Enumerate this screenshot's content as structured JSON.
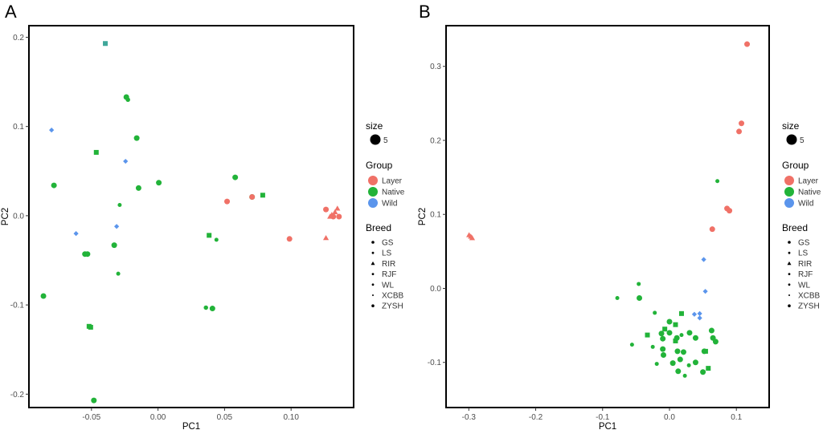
{
  "colors": {
    "Layer": "#F07167",
    "Native": "#22B339",
    "Wild": "#5B95EC",
    "Wild_square": "#3FA79A"
  },
  "legend": {
    "size_title": "size",
    "size_value": "5",
    "group_title": "Group",
    "groups": [
      "Layer",
      "Native",
      "Wild"
    ],
    "breed_title": "Breed",
    "breeds": [
      "GS",
      "LS",
      "RIR",
      "RJF",
      "WL",
      "XCBB",
      "ZYSH"
    ]
  },
  "chart_data": [
    {
      "panel_label": "A",
      "type": "scatter",
      "xlabel": "PC1",
      "ylabel": "PC2",
      "xlim": [
        -0.097,
        0.147
      ],
      "ylim": [
        -0.215,
        0.213
      ],
      "xticks": [
        {
          "v": -0.05,
          "label": "-0.05"
        },
        {
          "v": 0.0,
          "label": "0.00"
        },
        {
          "v": 0.05,
          "label": "0.05"
        },
        {
          "v": 0.1,
          "label": "0.10"
        }
      ],
      "yticks": [
        {
          "v": -0.2,
          "label": "-0.2"
        },
        {
          "v": -0.1,
          "label": "-0.1"
        },
        {
          "v": 0.0,
          "label": "0.0"
        },
        {
          "v": 0.1,
          "label": "0.1"
        },
        {
          "v": 0.2,
          "label": "0.2"
        }
      ],
      "points": [
        {
          "x": -0.0396,
          "y": 0.193,
          "group": "Wild",
          "shape": "square",
          "size": 6
        },
        {
          "x": -0.0238,
          "y": 0.133,
          "group": "Native",
          "shape": "circle",
          "size": 6
        },
        {
          "x": -0.0226,
          "y": 0.13,
          "group": "Native",
          "shape": "circle",
          "size": 4.5
        },
        {
          "x": -0.08,
          "y": 0.096,
          "group": "Wild",
          "shape": "diamond",
          "size": 5
        },
        {
          "x": -0.016,
          "y": 0.087,
          "group": "Native",
          "shape": "circle",
          "size": 6
        },
        {
          "x": -0.0464,
          "y": 0.071,
          "group": "Native",
          "shape": "square",
          "size": 6
        },
        {
          "x": -0.0244,
          "y": 0.061,
          "group": "Wild",
          "shape": "diamond",
          "size": 5
        },
        {
          "x": -0.0782,
          "y": 0.034,
          "group": "Native",
          "shape": "circle",
          "size": 6
        },
        {
          "x": -0.0146,
          "y": 0.031,
          "group": "Native",
          "shape": "circle",
          "size": 6
        },
        {
          "x": 0.0006,
          "y": 0.037,
          "group": "Native",
          "shape": "circle",
          "size": 6
        },
        {
          "x": 0.058,
          "y": 0.043,
          "group": "Native",
          "shape": "circle",
          "size": 6
        },
        {
          "x": 0.0707,
          "y": 0.021,
          "group": "Native",
          "shape": "circle",
          "size": 6
        },
        {
          "x": 0.0787,
          "y": 0.023,
          "group": "Native",
          "shape": "square",
          "size": 6
        },
        {
          "x": 0.0519,
          "y": 0.016,
          "group": "Layer",
          "shape": "circle",
          "size": 6
        },
        {
          "x": 0.0707,
          "y": 0.021,
          "group": "Layer",
          "shape": "circle",
          "size": 6
        },
        {
          "x": -0.0288,
          "y": 0.012,
          "group": "Native",
          "shape": "circle",
          "size": 4
        },
        {
          "x": -0.0311,
          "y": -0.012,
          "group": "Wild",
          "shape": "diamond",
          "size": 5
        },
        {
          "x": -0.0616,
          "y": -0.02,
          "group": "Wild",
          "shape": "diamond",
          "size": 5
        },
        {
          "x": -0.0329,
          "y": -0.033,
          "group": "Native",
          "shape": "circle",
          "size": 6
        },
        {
          "x": -0.0549,
          "y": -0.043,
          "group": "Native",
          "shape": "circle",
          "size": 6
        },
        {
          "x": -0.053,
          "y": -0.043,
          "group": "Native",
          "shape": "circle",
          "size": 6
        },
        {
          "x": 0.0384,
          "y": -0.022,
          "group": "Native",
          "shape": "square",
          "size": 6
        },
        {
          "x": 0.0439,
          "y": -0.027,
          "group": "Native",
          "shape": "circle",
          "size": 4
        },
        {
          "x": -0.0299,
          "y": -0.065,
          "group": "Native",
          "shape": "circle",
          "size": 4
        },
        {
          "x": -0.0861,
          "y": -0.09,
          "group": "Native",
          "shape": "circle",
          "size": 6
        },
        {
          "x": 0.036,
          "y": -0.103,
          "group": "Native",
          "shape": "circle",
          "size": 4.5
        },
        {
          "x": 0.0409,
          "y": -0.104,
          "group": "Native",
          "shape": "circle",
          "size": 6
        },
        {
          "x": -0.0518,
          "y": -0.124,
          "group": "Native",
          "shape": "square",
          "size": 6
        },
        {
          "x": -0.0506,
          "y": -0.125,
          "group": "Native",
          "shape": "square",
          "size": 6
        },
        {
          "x": -0.0482,
          "y": -0.207,
          "group": "Native",
          "shape": "circle",
          "size": 6
        },
        {
          "x": 0.0988,
          "y": -0.026,
          "group": "Layer",
          "shape": "circle",
          "size": 6
        },
        {
          "x": 0.1262,
          "y": -0.025,
          "group": "Layer",
          "shape": "triangle",
          "size": 6
        },
        {
          "x": 0.1262,
          "y": 0.007,
          "group": "Layer",
          "shape": "circle",
          "size": 6
        },
        {
          "x": 0.1306,
          "y": 0.001,
          "group": "Layer",
          "shape": "triangle",
          "size": 6
        },
        {
          "x": 0.1317,
          "y": -0.001,
          "group": "Layer",
          "shape": "circle",
          "size": 6
        },
        {
          "x": 0.133,
          "y": 0.004,
          "group": "Layer",
          "shape": "triangle",
          "size": 6
        },
        {
          "x": 0.1348,
          "y": 0.008,
          "group": "Layer",
          "shape": "triangle",
          "size": 6
        },
        {
          "x": 0.136,
          "y": -0.001,
          "group": "Layer",
          "shape": "circle",
          "size": 6
        },
        {
          "x": 0.1293,
          "y": -0.001,
          "group": "Layer",
          "shape": "triangle",
          "size": 6
        }
      ]
    },
    {
      "panel_label": "B",
      "type": "scatter",
      "xlabel": "PC1",
      "ylabel": "PC2",
      "xlim": [
        -0.334,
        0.149
      ],
      "ylim": [
        -0.161,
        0.355
      ],
      "xticks": [
        {
          "v": -0.3,
          "label": "-0.3"
        },
        {
          "v": -0.2,
          "label": "-0.2"
        },
        {
          "v": -0.1,
          "label": "-0.1"
        },
        {
          "v": 0.0,
          "label": "0.0"
        },
        {
          "v": 0.1,
          "label": "0.1"
        }
      ],
      "yticks": [
        {
          "v": -0.1,
          "label": "-0.1"
        },
        {
          "v": 0.0,
          "label": "0.0"
        },
        {
          "v": 0.1,
          "label": "0.1"
        },
        {
          "v": 0.2,
          "label": "0.2"
        },
        {
          "v": 0.3,
          "label": "0.3"
        }
      ],
      "points": [
        {
          "x": -0.2996,
          "y": 0.072,
          "group": "Layer",
          "shape": "triangle",
          "size": 6
        },
        {
          "x": -0.297,
          "y": 0.07,
          "group": "Layer",
          "shape": "triangle",
          "size": 6
        },
        {
          "x": -0.295,
          "y": 0.068,
          "group": "Layer",
          "shape": "triangle",
          "size": 6
        },
        {
          "x": 0.116,
          "y": 0.33,
          "group": "Layer",
          "shape": "circle",
          "size": 6
        },
        {
          "x": 0.1076,
          "y": 0.223,
          "group": "Layer",
          "shape": "circle",
          "size": 6
        },
        {
          "x": 0.104,
          "y": 0.212,
          "group": "Layer",
          "shape": "circle",
          "size": 6
        },
        {
          "x": 0.086,
          "y": 0.108,
          "group": "Layer",
          "shape": "circle",
          "size": 6
        },
        {
          "x": 0.0896,
          "y": 0.105,
          "group": "Layer",
          "shape": "circle",
          "size": 6
        },
        {
          "x": 0.064,
          "y": 0.08,
          "group": "Layer",
          "shape": "circle",
          "size": 6
        },
        {
          "x": 0.0716,
          "y": 0.145,
          "group": "Native",
          "shape": "circle",
          "size": 4
        },
        {
          "x": 0.0512,
          "y": 0.039,
          "group": "Wild",
          "shape": "diamond",
          "size": 5
        },
        {
          "x": 0.0536,
          "y": -0.004,
          "group": "Wild",
          "shape": "diamond",
          "size": 5
        },
        {
          "x": 0.0372,
          "y": -0.035,
          "group": "Wild",
          "shape": "diamond",
          "size": 5
        },
        {
          "x": 0.0452,
          "y": -0.034,
          "group": "Wild",
          "shape": "diamond",
          "size": 5
        },
        {
          "x": 0.0452,
          "y": -0.04,
          "group": "Wild",
          "shape": "diamond",
          "size": 5
        },
        {
          "x": -0.046,
          "y": 0.006,
          "group": "Native",
          "shape": "circle",
          "size": 4
        },
        {
          "x": -0.078,
          "y": -0.013,
          "group": "Native",
          "shape": "circle",
          "size": 4
        },
        {
          "x": -0.045,
          "y": -0.013,
          "group": "Native",
          "shape": "circle",
          "size": 6
        },
        {
          "x": -0.022,
          "y": -0.033,
          "group": "Native",
          "shape": "circle",
          "size": 4
        },
        {
          "x": 0.018,
          "y": -0.034,
          "group": "Native",
          "shape": "square",
          "size": 6
        },
        {
          "x": 0.0,
          "y": -0.045,
          "group": "Native",
          "shape": "circle",
          "size": 6
        },
        {
          "x": 0.009,
          "y": -0.049,
          "group": "Native",
          "shape": "square",
          "size": 6
        },
        {
          "x": -0.007,
          "y": -0.055,
          "group": "Native",
          "shape": "square",
          "size": 6
        },
        {
          "x": 0.0,
          "y": -0.06,
          "group": "Native",
          "shape": "circle",
          "size": 6
        },
        {
          "x": -0.012,
          "y": -0.061,
          "group": "Native",
          "shape": "circle",
          "size": 6
        },
        {
          "x": 0.018,
          "y": -0.063,
          "group": "Native",
          "shape": "circle",
          "size": 4
        },
        {
          "x": 0.011,
          "y": -0.067,
          "group": "Native",
          "shape": "circle",
          "size": 6
        },
        {
          "x": 0.009,
          "y": -0.071,
          "group": "Native",
          "shape": "square",
          "size": 6
        },
        {
          "x": -0.01,
          "y": -0.068,
          "group": "Native",
          "shape": "circle",
          "size": 6
        },
        {
          "x": -0.033,
          "y": -0.063,
          "group": "Native",
          "shape": "square",
          "size": 6
        },
        {
          "x": 0.03,
          "y": -0.06,
          "group": "Native",
          "shape": "circle",
          "size": 6
        },
        {
          "x": 0.039,
          "y": -0.067,
          "group": "Native",
          "shape": "circle",
          "size": 6
        },
        {
          "x": 0.063,
          "y": -0.057,
          "group": "Native",
          "shape": "circle",
          "size": 6
        },
        {
          "x": 0.065,
          "y": -0.067,
          "group": "Native",
          "shape": "circle",
          "size": 6
        },
        {
          "x": 0.069,
          "y": -0.072,
          "group": "Native",
          "shape": "circle",
          "size": 6
        },
        {
          "x": -0.025,
          "y": -0.079,
          "group": "Native",
          "shape": "circle",
          "size": 4
        },
        {
          "x": -0.01,
          "y": -0.082,
          "group": "Native",
          "shape": "circle",
          "size": 6
        },
        {
          "x": 0.012,
          "y": -0.085,
          "group": "Native",
          "shape": "circle",
          "size": 6
        },
        {
          "x": 0.021,
          "y": -0.086,
          "group": "Native",
          "shape": "circle",
          "size": 6
        },
        {
          "x": 0.054,
          "y": -0.085,
          "group": "Native",
          "shape": "square",
          "size": 6
        },
        {
          "x": 0.052,
          "y": -0.085,
          "group": "Native",
          "shape": "circle",
          "size": 6
        },
        {
          "x": -0.056,
          "y": -0.076,
          "group": "Native",
          "shape": "circle",
          "size": 4
        },
        {
          "x": -0.009,
          "y": -0.09,
          "group": "Native",
          "shape": "circle",
          "size": 6
        },
        {
          "x": 0.005,
          "y": -0.101,
          "group": "Native",
          "shape": "circle",
          "size": 6
        },
        {
          "x": 0.039,
          "y": -0.1,
          "group": "Native",
          "shape": "circle",
          "size": 6
        },
        {
          "x": 0.016,
          "y": -0.096,
          "group": "Native",
          "shape": "circle",
          "size": 6
        },
        {
          "x": 0.029,
          "y": -0.104,
          "group": "Native",
          "shape": "circle",
          "size": 4
        },
        {
          "x": -0.019,
          "y": -0.102,
          "group": "Native",
          "shape": "circle",
          "size": 4
        },
        {
          "x": 0.058,
          "y": -0.108,
          "group": "Native",
          "shape": "square",
          "size": 6
        },
        {
          "x": 0.05,
          "y": -0.113,
          "group": "Native",
          "shape": "circle",
          "size": 6
        },
        {
          "x": 0.013,
          "y": -0.112,
          "group": "Native",
          "shape": "circle",
          "size": 6
        },
        {
          "x": 0.023,
          "y": -0.118,
          "group": "Native",
          "shape": "circle",
          "size": 4
        }
      ]
    }
  ]
}
